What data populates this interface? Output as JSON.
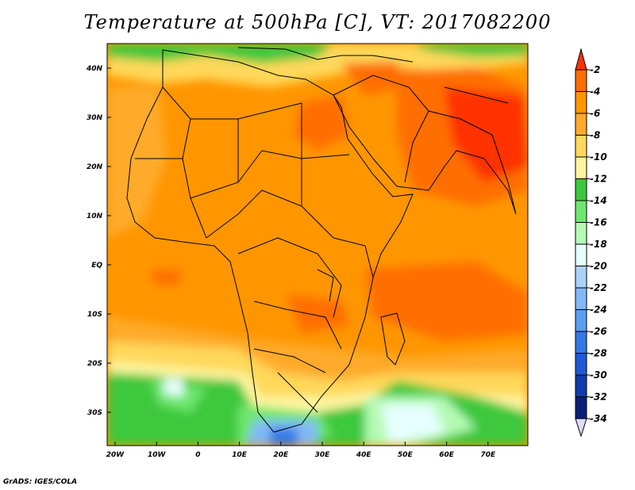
{
  "title": "Temperature at 500hPa [C], VT: 2017082200",
  "credit": "GrADS: IGES/COLA",
  "map": {
    "lat_labels": [
      "40N",
      "30N",
      "20N",
      "10N",
      "EQ",
      "10S",
      "20S",
      "30S"
    ],
    "lon_labels": [
      "20W",
      "10W",
      "0",
      "10E",
      "20E",
      "30E",
      "40E",
      "50E",
      "60E",
      "70E"
    ]
  },
  "colorbar": {
    "labels": [
      "-2",
      "-4",
      "-6",
      "-8",
      "-10",
      "-12",
      "-14",
      "-16",
      "-18",
      "-20",
      "-22",
      "-24",
      "-26",
      "-28",
      "-30",
      "-32",
      "-34"
    ],
    "colors": [
      "#ff3200",
      "#ff6e00",
      "#ff9600",
      "#ffaa2c",
      "#ffd85a",
      "#fff5a0",
      "#3cc83c",
      "#6ee66e",
      "#b4fab4",
      "#e6ffff",
      "#aad2fa",
      "#82b9f5",
      "#5aa0f0",
      "#3278e6",
      "#1e5ad2",
      "#0f3caa",
      "#0a1e78"
    ],
    "end_colors": {
      "top": "#ff3200",
      "bottom": "#dcdcff"
    }
  }
}
